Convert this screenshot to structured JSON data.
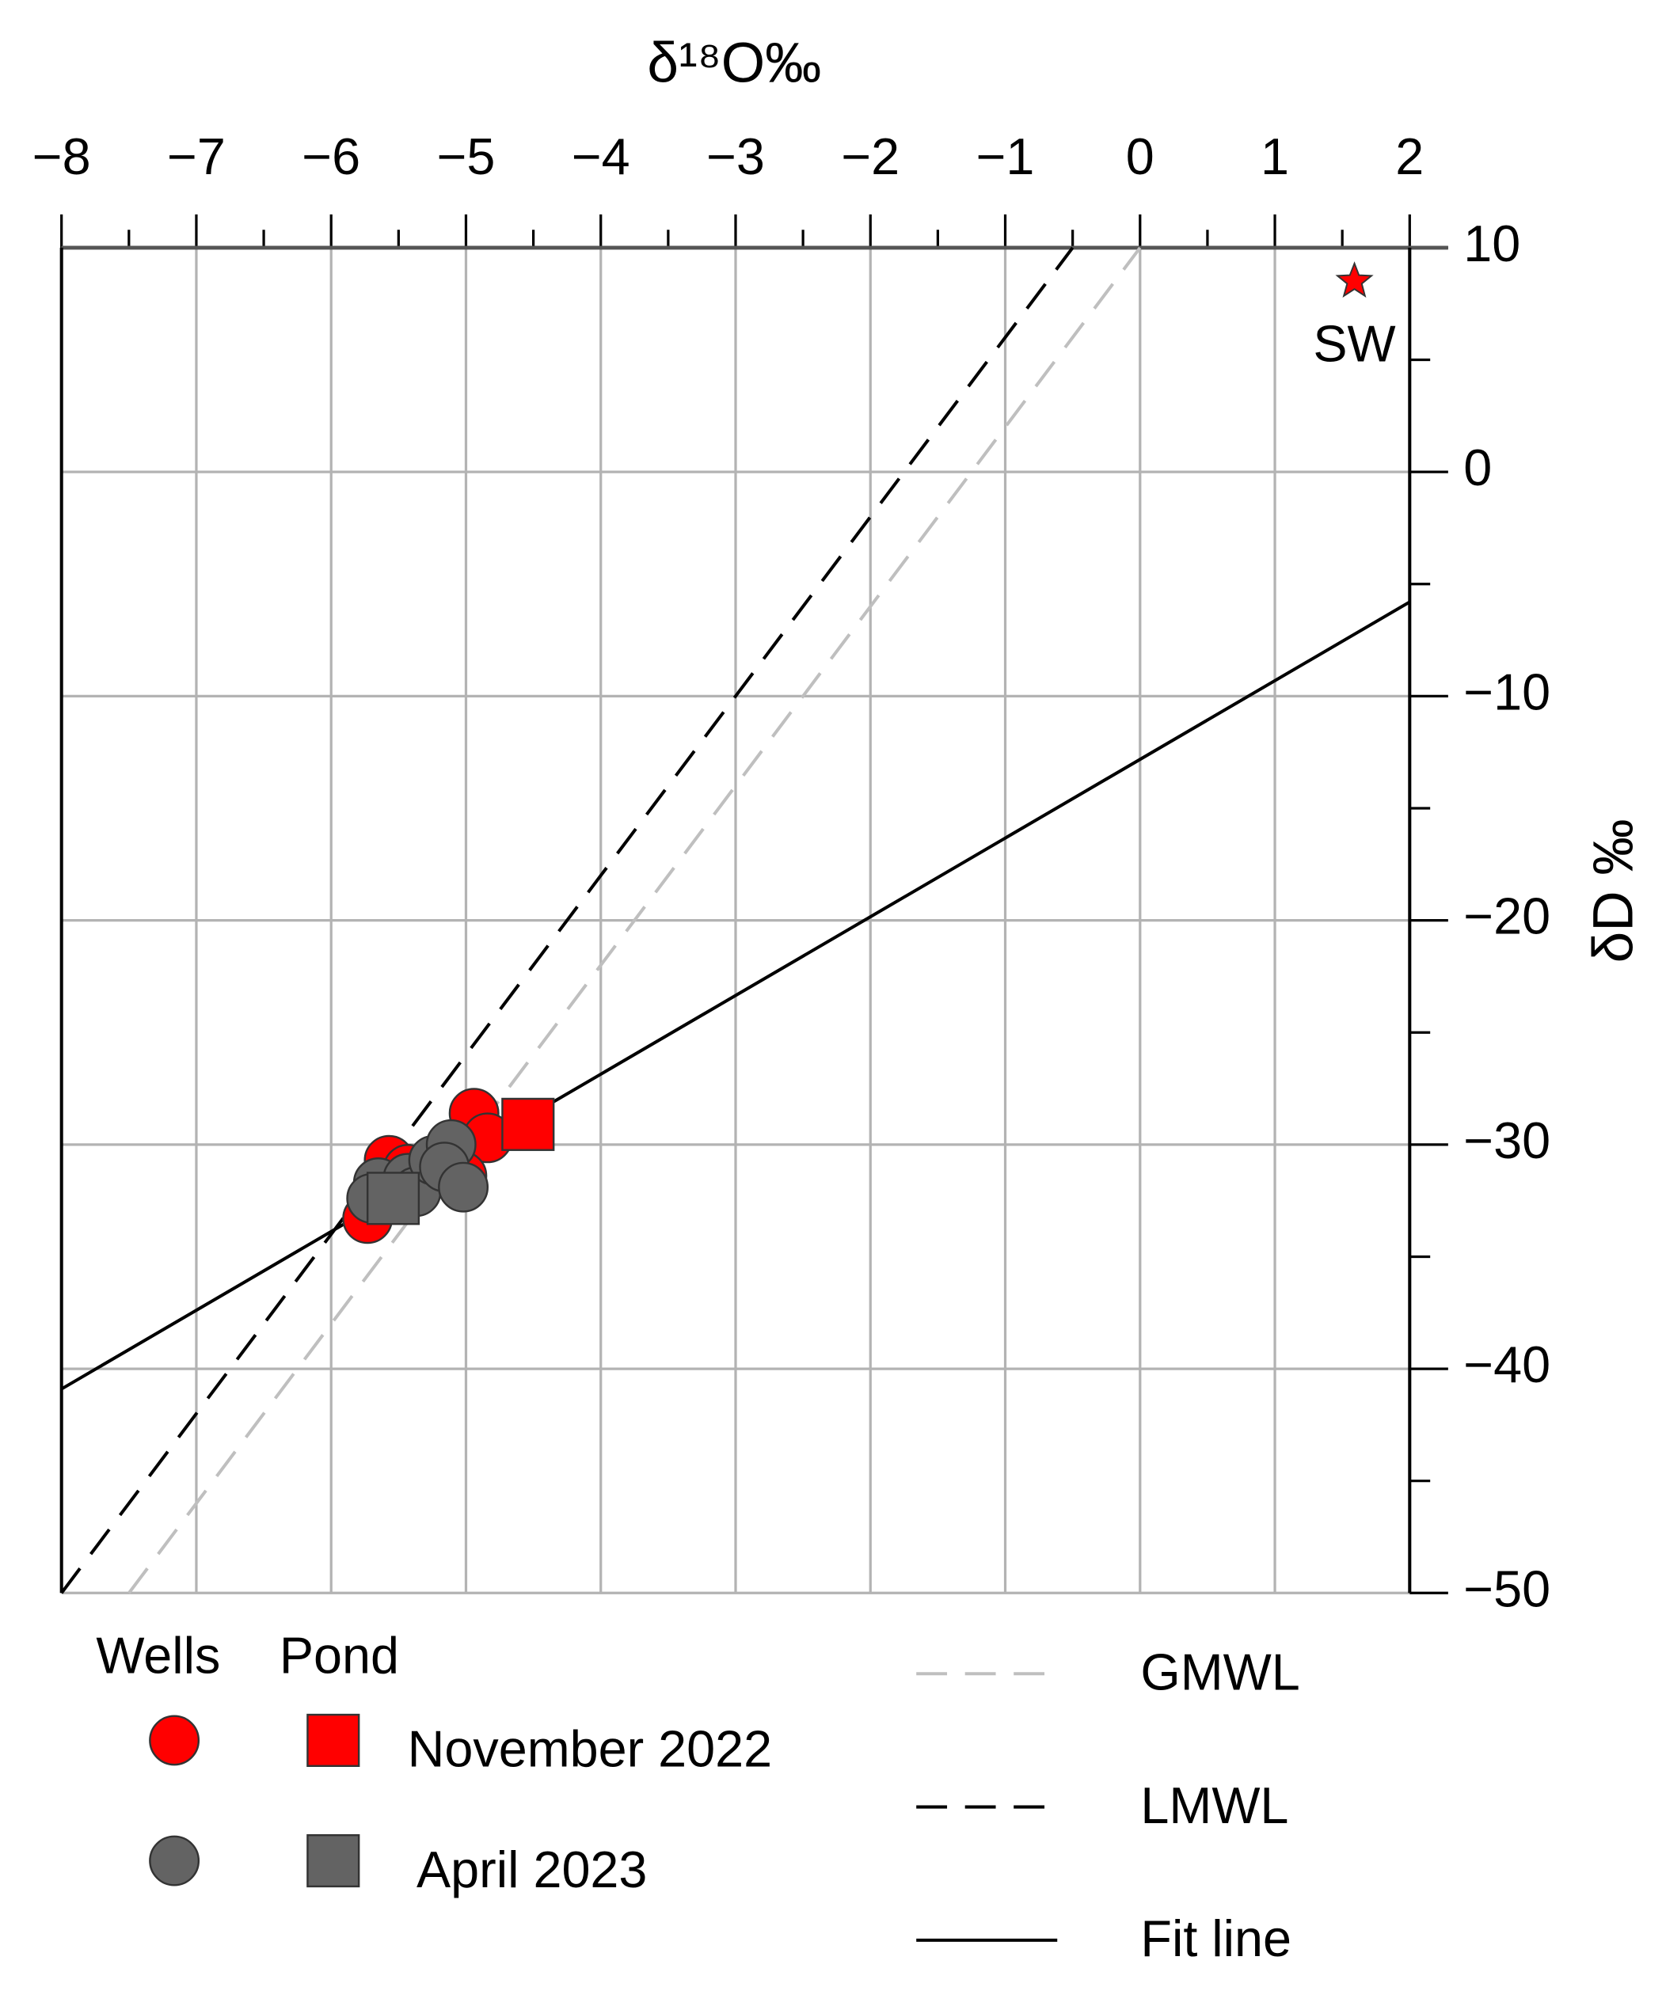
{
  "chart_data": {
    "type": "scatter",
    "x_label": "δ¹⁸O‰",
    "y_label": "δD ‰",
    "xlim": [
      -8,
      2
    ],
    "ylim": [
      -50,
      10
    ],
    "xticks": [
      {
        "value": -8,
        "label": "−8"
      },
      {
        "value": -7,
        "label": "−7"
      },
      {
        "value": -6,
        "label": "−6"
      },
      {
        "value": -5,
        "label": "−5"
      },
      {
        "value": -4,
        "label": "−4"
      },
      {
        "value": -3,
        "label": "−3"
      },
      {
        "value": -2,
        "label": "−2"
      },
      {
        "value": -1,
        "label": "−1"
      },
      0,
      1,
      2
    ],
    "xticks_minor": [
      -7.5,
      -6.5,
      -5.5,
      -4.5,
      -3.5,
      -2.5,
      -1.5,
      -0.5,
      0.5,
      1.5
    ],
    "yticks": [
      {
        "value": -50,
        "label": "−50"
      },
      {
        "value": -40,
        "label": "−40"
      },
      {
        "value": -30,
        "label": "−30"
      },
      {
        "value": -20,
        "label": "−20"
      },
      {
        "value": -10,
        "label": "−10"
      },
      0,
      10
    ],
    "yticks_minor": [
      -45,
      -35,
      -25,
      -15,
      -5,
      5
    ],
    "grid": true,
    "grid_color": "#b3b3b3",
    "site_labels": {
      "wells": "Wells",
      "pond": "Pond"
    },
    "sample_sets": [
      {
        "name": "November 2022",
        "color": "#ff0000",
        "wells": {
          "x": [
            -4.94,
            -4.84,
            -5.57,
            -5.73,
            -5.43,
            -5.03
          ],
          "y": [
            -28.6,
            -29.7,
            -30.7,
            -33.3,
            -31.1,
            -31.4
          ]
        },
        "pond": {
          "x": [
            -4.54
          ],
          "y": [
            -29.1
          ]
        }
      },
      {
        "name": "April 2023",
        "color": "#636363",
        "wells": {
          "x": [
            -5.65,
            -5.43,
            -5.37,
            -5.24,
            -5.11,
            -5.16,
            -5.02,
            -5.7
          ],
          "y": [
            -31.7,
            -31.5,
            -32.1,
            -30.7,
            -30.0,
            -31.0,
            -31.9,
            -32.4
          ]
        },
        "pond": {
          "x": [
            -5.54
          ],
          "y": [
            -32.4
          ]
        }
      }
    ],
    "sea_water": {
      "name": "SW",
      "color": "#ff0000",
      "x": 1.59,
      "y": 8.5
    },
    "lines": [
      {
        "name": "GMWL",
        "color": "#bfbfbf",
        "dash": "dashed",
        "x": [
          -7.5,
          0
        ],
        "y": [
          -50,
          10
        ]
      },
      {
        "name": "LMWL",
        "color": "#000000",
        "dash": "dashed",
        "x": [
          -8,
          -0.5
        ],
        "y": [
          -50,
          10
        ]
      },
      {
        "name": "Fit line",
        "color": "#000000",
        "dash": "solid",
        "x": [
          -8,
          2
        ],
        "y": [
          -40.9,
          -5.8
        ]
      }
    ]
  }
}
